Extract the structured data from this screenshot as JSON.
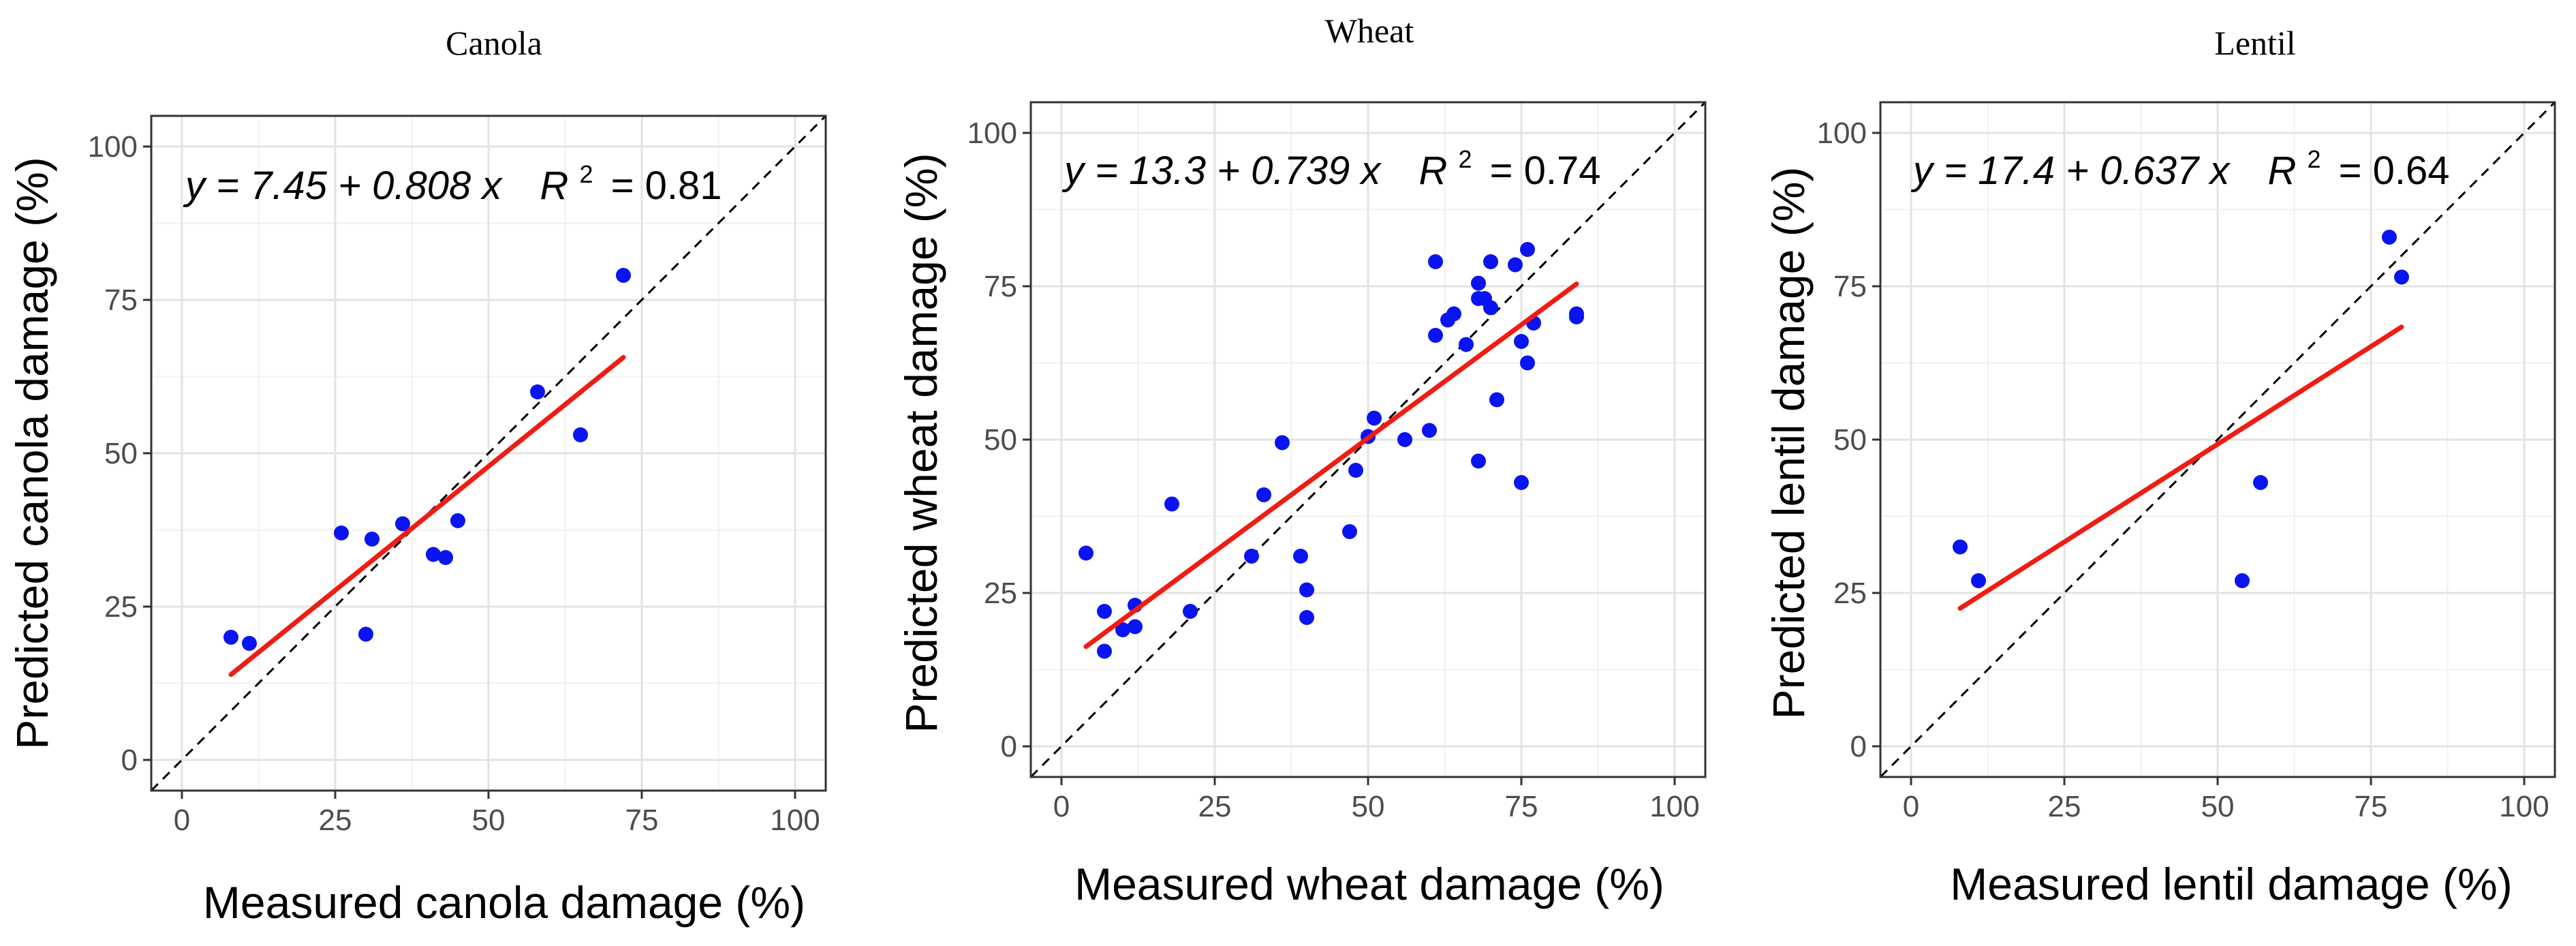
{
  "colors": {
    "point": "#0a14f0",
    "fit": "#f01c14",
    "grid_major": "#e3e3e3",
    "grid_minor": "#f1f1f1",
    "border": "#333333",
    "identity": "#000000"
  },
  "chart_data": [
    {
      "type": "scatter",
      "title": "Canola",
      "xlabel": "Measured canola damage (%)",
      "ylabel": "Predicted canola damage (%)",
      "xlim": [
        -5,
        105
      ],
      "ylim": [
        -5,
        105
      ],
      "xticks": [
        "0",
        "25",
        "50",
        "75",
        "100"
      ],
      "yticks": [
        "0",
        "25",
        "50",
        "75",
        "100"
      ],
      "equation": {
        "text": "y = 7.45 + 0.808 x",
        "r2_label": "R",
        "r2_sup": "2",
        "r2_value": "= 0.81"
      },
      "fit": {
        "intercept": 7.45,
        "slope": 0.808,
        "x_range": [
          8,
          72
        ]
      },
      "identity_line": true,
      "points": [
        {
          "x": 8,
          "y": 20
        },
        {
          "x": 11,
          "y": 19
        },
        {
          "x": 26,
          "y": 37
        },
        {
          "x": 30,
          "y": 20.5
        },
        {
          "x": 31,
          "y": 36
        },
        {
          "x": 36,
          "y": 38.5
        },
        {
          "x": 41,
          "y": 33.5
        },
        {
          "x": 43,
          "y": 33
        },
        {
          "x": 45,
          "y": 39
        },
        {
          "x": 58,
          "y": 60
        },
        {
          "x": 65,
          "y": 53
        },
        {
          "x": 72,
          "y": 79
        }
      ]
    },
    {
      "type": "scatter",
      "title": "Wheat",
      "xlabel": "Measured wheat damage (%)",
      "ylabel": "Predicted wheat damage (%)",
      "xlim": [
        -5,
        105
      ],
      "ylim": [
        -5,
        105
      ],
      "xticks": [
        "0",
        "25",
        "50",
        "75",
        "100"
      ],
      "yticks": [
        "0",
        "25",
        "50",
        "75",
        "100"
      ],
      "equation": {
        "text": "y = 13.3 + 0.739 x",
        "r2_label": "R",
        "r2_sup": "2",
        "r2_value": "= 0.74"
      },
      "fit": {
        "intercept": 13.3,
        "slope": 0.739,
        "x_range": [
          4,
          84
        ]
      },
      "identity_line": true,
      "points": [
        {
          "x": 4,
          "y": 31.5
        },
        {
          "x": 7,
          "y": 22
        },
        {
          "x": 7,
          "y": 15.5
        },
        {
          "x": 10,
          "y": 19
        },
        {
          "x": 12,
          "y": 23
        },
        {
          "x": 12,
          "y": 19.5
        },
        {
          "x": 18,
          "y": 39.5
        },
        {
          "x": 21,
          "y": 22
        },
        {
          "x": 31,
          "y": 31
        },
        {
          "x": 33,
          "y": 41
        },
        {
          "x": 36,
          "y": 49.5
        },
        {
          "x": 39,
          "y": 31
        },
        {
          "x": 40,
          "y": 25.5
        },
        {
          "x": 40,
          "y": 21
        },
        {
          "x": 47,
          "y": 35
        },
        {
          "x": 48,
          "y": 45
        },
        {
          "x": 50,
          "y": 50.5
        },
        {
          "x": 51,
          "y": 53.5
        },
        {
          "x": 56,
          "y": 50
        },
        {
          "x": 60,
          "y": 51.5
        },
        {
          "x": 61,
          "y": 79
        },
        {
          "x": 61,
          "y": 67
        },
        {
          "x": 63,
          "y": 69.5
        },
        {
          "x": 64,
          "y": 70.5
        },
        {
          "x": 66,
          "y": 65.5
        },
        {
          "x": 68,
          "y": 75.5
        },
        {
          "x": 68,
          "y": 73
        },
        {
          "x": 69,
          "y": 73
        },
        {
          "x": 70,
          "y": 79
        },
        {
          "x": 70,
          "y": 71.5
        },
        {
          "x": 71,
          "y": 56.5
        },
        {
          "x": 68,
          "y": 46.5
        },
        {
          "x": 74,
          "y": 78.5
        },
        {
          "x": 75,
          "y": 66
        },
        {
          "x": 75,
          "y": 43
        },
        {
          "x": 76,
          "y": 81
        },
        {
          "x": 76,
          "y": 62.5
        },
        {
          "x": 77,
          "y": 69
        },
        {
          "x": 84,
          "y": 70.5
        },
        {
          "x": 84,
          "y": 70
        }
      ]
    },
    {
      "type": "scatter",
      "title": "Lentil",
      "xlabel": "Measured lentil damage (%)",
      "ylabel": "Predicted lentil damage (%)",
      "xlim": [
        -5,
        105
      ],
      "ylim": [
        -5,
        105
      ],
      "xticks": [
        "0",
        "25",
        "50",
        "75",
        "100"
      ],
      "yticks": [
        "0",
        "25",
        "50",
        "75",
        "100"
      ],
      "equation": {
        "text": "y = 17.4 + 0.637 x",
        "r2_label": "R",
        "r2_sup": "2",
        "r2_value": "= 0.64"
      },
      "fit": {
        "intercept": 17.4,
        "slope": 0.637,
        "x_range": [
          8,
          80
        ]
      },
      "identity_line": true,
      "points": [
        {
          "x": 8,
          "y": 32.5
        },
        {
          "x": 11,
          "y": 27
        },
        {
          "x": 54,
          "y": 27
        },
        {
          "x": 57,
          "y": 43
        },
        {
          "x": 78,
          "y": 83
        },
        {
          "x": 80,
          "y": 76.5
        }
      ]
    }
  ]
}
